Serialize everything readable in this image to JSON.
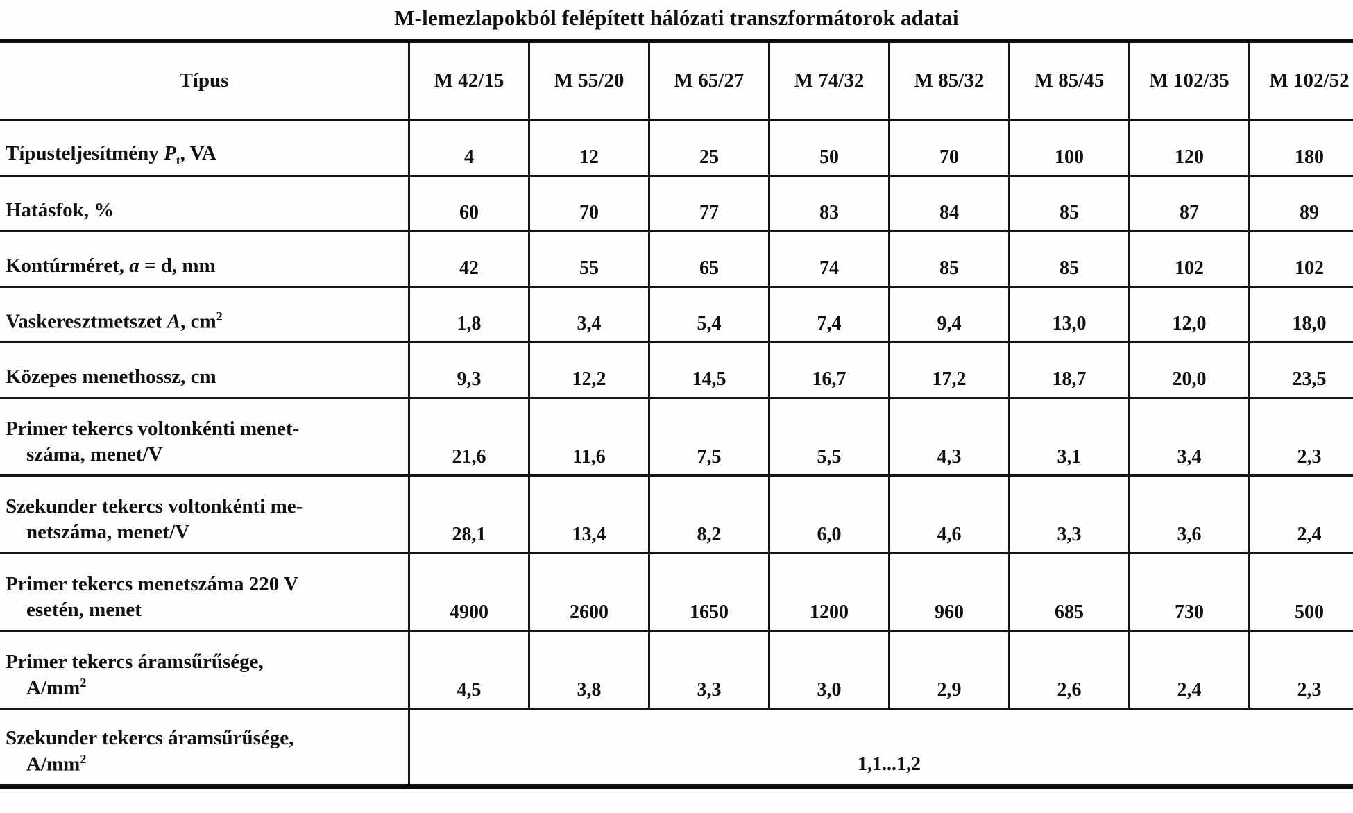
{
  "title": "M-lemezlapokból felépített hálózati transzformátorok adatai",
  "table": {
    "header": {
      "corner": "Típus",
      "types": [
        "M 42/15",
        "M 55/20",
        "M 65/27",
        "M 74/32",
        "M 85/32",
        "M 85/45",
        "M 102/35",
        "M 102/52"
      ]
    },
    "rows": [
      {
        "label": [
          {
            "t": "Típusteljesítmény ",
            "k": "text"
          },
          {
            "t": "P",
            "k": "italic"
          },
          {
            "t": "t",
            "k": "sub"
          },
          {
            "t": ", VA",
            "k": "text"
          }
        ],
        "values": [
          "4",
          "12",
          "25",
          "50",
          "70",
          "100",
          "120",
          "180"
        ]
      },
      {
        "label": [
          {
            "t": "Hatásfok, %",
            "k": "text"
          }
        ],
        "values": [
          "60",
          "70",
          "77",
          "83",
          "84",
          "85",
          "87",
          "89"
        ]
      },
      {
        "label": [
          {
            "t": "Kontúrméret, ",
            "k": "text"
          },
          {
            "t": "a",
            "k": "italic"
          },
          {
            "t": " = d, mm",
            "k": "text"
          }
        ],
        "values": [
          "42",
          "55",
          "65",
          "74",
          "85",
          "85",
          "102",
          "102"
        ]
      },
      {
        "label": [
          {
            "t": "Vaskeresztmetszet ",
            "k": "text"
          },
          {
            "t": "A",
            "k": "italic"
          },
          {
            "t": ", cm",
            "k": "text"
          },
          {
            "t": "2",
            "k": "sup"
          }
        ],
        "values": [
          "1,8",
          "3,4",
          "5,4",
          "7,4",
          "9,4",
          "13,0",
          "12,0",
          "18,0"
        ]
      },
      {
        "label": [
          {
            "t": "Közepes menethossz, cm",
            "k": "text"
          }
        ],
        "values": [
          "9,3",
          "12,2",
          "14,5",
          "16,7",
          "17,2",
          "18,7",
          "20,0",
          "23,5"
        ]
      },
      {
        "label": [
          {
            "t": "Primer tekercs voltonkénti menet-",
            "k": "text"
          },
          {
            "t": "",
            "k": "break"
          },
          {
            "t": "száma, menet/V",
            "k": "text"
          }
        ],
        "values": [
          "21,6",
          "11,6",
          "7,5",
          "5,5",
          "4,3",
          "3,1",
          "3,4",
          "2,3"
        ]
      },
      {
        "label": [
          {
            "t": "Szekunder tekercs voltonkénti me-",
            "k": "text"
          },
          {
            "t": "",
            "k": "break"
          },
          {
            "t": "netszáma, menet/V",
            "k": "text"
          }
        ],
        "values": [
          "28,1",
          "13,4",
          "8,2",
          "6,0",
          "4,6",
          "3,3",
          "3,6",
          "2,4"
        ]
      },
      {
        "label": [
          {
            "t": "Primer tekercs menetszáma 220 V",
            "k": "text"
          },
          {
            "t": "",
            "k": "break"
          },
          {
            "t": "esetén, menet",
            "k": "text"
          }
        ],
        "values": [
          "4900",
          "2600",
          "1650",
          "1200",
          "960",
          "685",
          "730",
          "500"
        ]
      },
      {
        "label": [
          {
            "t": "Primer tekercs áramsűrűsége,",
            "k": "text"
          },
          {
            "t": "",
            "k": "break"
          },
          {
            "t": "A/mm",
            "k": "text"
          },
          {
            "t": "2",
            "k": "sup"
          }
        ],
        "values": [
          "4,5",
          "3,8",
          "3,3",
          "3,0",
          "2,9",
          "2,6",
          "2,4",
          "2,3"
        ]
      },
      {
        "label": [
          {
            "t": "Szekunder tekercs áramsűrűsége,",
            "k": "text"
          },
          {
            "t": "",
            "k": "break"
          },
          {
            "t": "A/mm",
            "k": "text"
          },
          {
            "t": "2",
            "k": "sup"
          }
        ],
        "span_value": "1,1...1,2"
      }
    ]
  }
}
